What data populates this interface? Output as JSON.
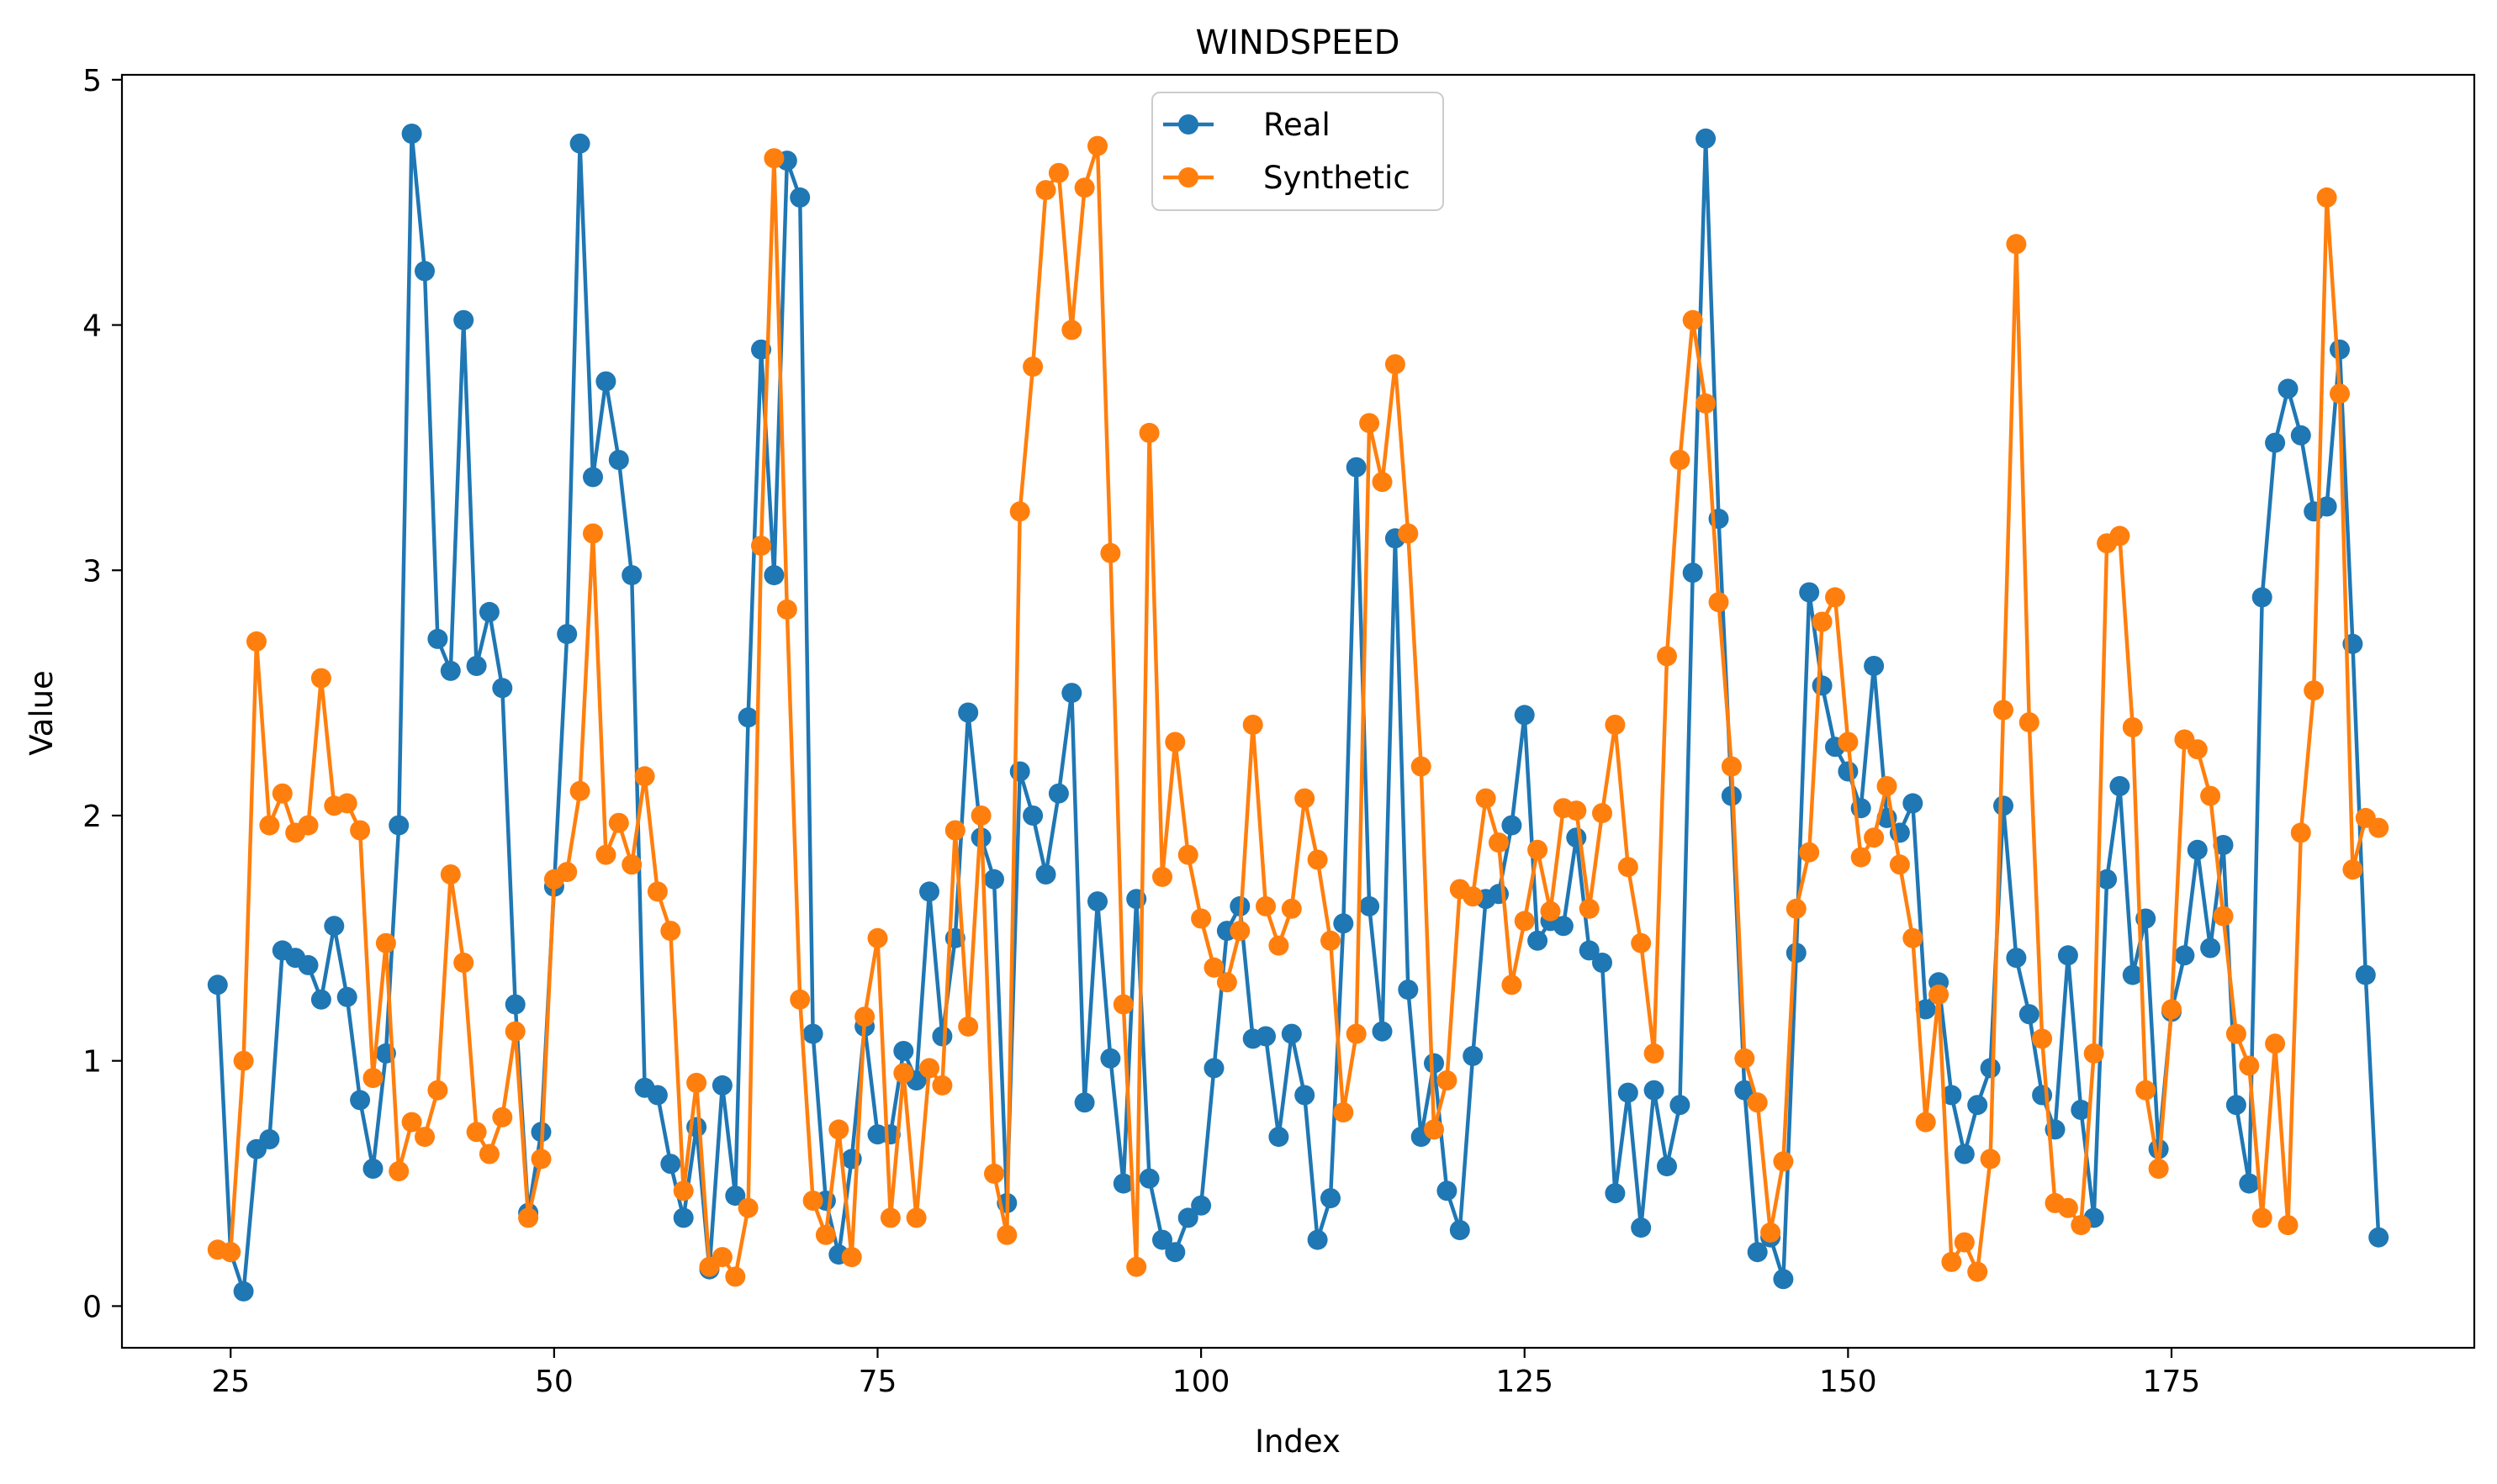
{
  "chart_data": {
    "type": "line",
    "title": "WINDSPEED",
    "xlabel": "Index",
    "ylabel": "Value",
    "xlim": [
      16.6,
      198.4
    ],
    "ylim": [
      -0.17,
      5.02
    ],
    "x_ticks": [
      25,
      50,
      75,
      100,
      125,
      150,
      175
    ],
    "y_ticks": [
      0,
      1,
      2,
      3,
      4,
      5
    ],
    "grid": false,
    "legend_position": "top-center",
    "x_start": 24,
    "series": [
      {
        "name": "Real",
        "color": "#1f77b4",
        "marker": "circle",
        "values": [
          1.31,
          0.22,
          0.06,
          0.64,
          0.68,
          1.45,
          1.42,
          1.39,
          1.25,
          1.55,
          1.26,
          0.84,
          0.56,
          1.03,
          1.96,
          4.78,
          4.22,
          2.72,
          2.59,
          4.02,
          2.61,
          2.83,
          2.52,
          1.23,
          0.38,
          0.71,
          1.71,
          2.74,
          4.74,
          3.38,
          3.77,
          3.45,
          2.98,
          0.89,
          0.86,
          0.58,
          0.36,
          0.73,
          0.15,
          0.9,
          0.45,
          2.4,
          3.9,
          2.98,
          4.67,
          4.52,
          1.11,
          0.43,
          0.21,
          0.6,
          1.14,
          0.7,
          0.7,
          1.04,
          0.92,
          1.69,
          1.1,
          1.5,
          2.42,
          1.91,
          1.74,
          0.42,
          2.18,
          2.0,
          1.76,
          2.09,
          2.5,
          0.83,
          1.65,
          1.01,
          0.5,
          1.66,
          0.52,
          0.27,
          0.22,
          0.36,
          0.41,
          0.97,
          1.53,
          1.63,
          1.09,
          1.1,
          0.69,
          1.11,
          0.86,
          0.27,
          0.44,
          1.56,
          3.42,
          1.63,
          1.12,
          3.13,
          1.29,
          0.69,
          0.99,
          0.47,
          0.31,
          1.02,
          1.66,
          1.68,
          1.96,
          2.41,
          1.49,
          1.57,
          1.55,
          1.91,
          1.45,
          1.4,
          0.46,
          0.87,
          0.32,
          0.88,
          0.57,
          0.82,
          2.99,
          4.76,
          3.21,
          2.08,
          0.88,
          0.22,
          0.28,
          0.11,
          1.44,
          2.91,
          2.53,
          2.28,
          2.18,
          2.03,
          2.61,
          1.99,
          1.93,
          2.05,
          1.21,
          1.32,
          0.86,
          0.62,
          0.82,
          0.97,
          2.04,
          1.42,
          1.19,
          0.86,
          0.72,
          1.43,
          0.8,
          0.36,
          1.74,
          2.12,
          1.35,
          1.58,
          0.64,
          1.2,
          1.43,
          1.86,
          1.46,
          1.88,
          0.82,
          0.5,
          2.89,
          3.52,
          3.74,
          3.55,
          3.24,
          3.26,
          3.9,
          2.7,
          1.35,
          0.28
        ]
      },
      {
        "name": "Synthetic",
        "color": "#ff7f0e",
        "marker": "circle",
        "values": [
          0.23,
          0.22,
          1.0,
          2.71,
          1.96,
          2.09,
          1.93,
          1.96,
          2.56,
          2.04,
          2.05,
          1.94,
          0.93,
          1.48,
          0.55,
          0.75,
          0.69,
          0.88,
          1.76,
          1.4,
          0.71,
          0.62,
          0.77,
          1.12,
          0.36,
          0.6,
          1.74,
          1.77,
          2.1,
          3.15,
          1.84,
          1.97,
          1.8,
          2.16,
          1.69,
          1.53,
          0.47,
          0.91,
          0.16,
          0.2,
          0.12,
          0.4,
          3.1,
          4.68,
          2.84,
          1.25,
          0.43,
          0.29,
          0.72,
          0.2,
          1.18,
          1.5,
          0.36,
          0.95,
          0.36,
          0.97,
          0.9,
          1.94,
          1.14,
          2.0,
          0.54,
          0.29,
          3.24,
          3.83,
          4.55,
          4.62,
          3.98,
          4.56,
          4.73,
          3.07,
          1.23,
          0.16,
          3.56,
          1.75,
          2.3,
          1.84,
          1.58,
          1.38,
          1.32,
          1.53,
          2.37,
          1.63,
          1.47,
          1.62,
          2.07,
          1.82,
          1.49,
          0.79,
          1.11,
          3.6,
          3.36,
          3.84,
          3.15,
          2.2,
          0.72,
          0.92,
          1.7,
          1.67,
          2.07,
          1.89,
          1.31,
          1.57,
          1.86,
          1.61,
          2.03,
          2.02,
          1.62,
          2.01,
          2.37,
          1.79,
          1.48,
          1.03,
          2.65,
          3.45,
          4.02,
          3.68,
          2.87,
          2.2,
          1.01,
          0.83,
          0.3,
          0.59,
          1.62,
          1.85,
          2.79,
          2.89,
          2.3,
          1.83,
          1.91,
          2.12,
          1.8,
          1.5,
          0.75,
          1.27,
          0.18,
          0.26,
          0.14,
          0.6,
          2.43,
          4.33,
          2.38,
          1.09,
          0.42,
          0.4,
          0.33,
          1.03,
          3.11,
          3.14,
          2.36,
          0.88,
          0.56,
          1.21,
          2.31,
          2.27,
          2.08,
          1.59,
          1.11,
          0.98,
          0.36,
          1.07,
          0.33,
          1.93,
          2.51,
          4.52,
          3.72,
          1.78,
          1.99,
          1.95
        ]
      }
    ]
  }
}
